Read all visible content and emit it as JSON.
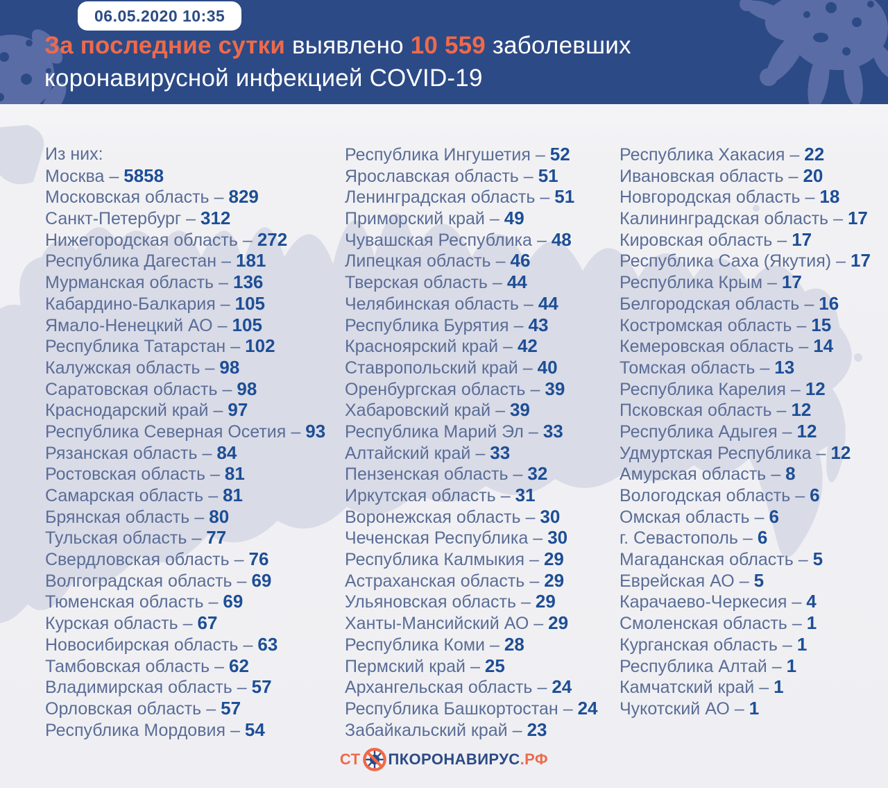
{
  "header": {
    "timestamp": "06.05.2020 10:35",
    "title": {
      "highlight1": "За последние сутки",
      "plain1": " выявлено ",
      "highlight2": "10 559",
      "plain2": " заболевших",
      "line2": "коронавирусной инфекцией COVID-19"
    }
  },
  "list_separator": "–",
  "chart_data": {
    "type": "table",
    "title": "За последние сутки выявлено 10 559 заболевших коронавирусной инфекцией COVID-19",
    "date_label": "06.05.2020 10:35",
    "total_new_cases": 10559,
    "intro": "Из них:",
    "columns": [
      [
        {
          "region": "Москва",
          "cases": 5858
        },
        {
          "region": "Московская область",
          "cases": 829
        },
        {
          "region": "Санкт-Петербург",
          "cases": 312
        },
        {
          "region": "Нижегородская область",
          "cases": 272
        },
        {
          "region": "Республика Дагестан",
          "cases": 181
        },
        {
          "region": "Мурманская область",
          "cases": 136
        },
        {
          "region": "Кабардино-Балкария",
          "cases": 105
        },
        {
          "region": "Ямало-Ненецкий АО",
          "cases": 105
        },
        {
          "region": "Республика Татарстан",
          "cases": 102
        },
        {
          "region": "Калужская область",
          "cases": 98
        },
        {
          "region": "Саратовская область",
          "cases": 98
        },
        {
          "region": "Краснодарский край",
          "cases": 97
        },
        {
          "region": "Республика Северная Осетия",
          "cases": 93
        },
        {
          "region": "Рязанская область",
          "cases": 84
        },
        {
          "region": "Ростовская область",
          "cases": 81
        },
        {
          "region": "Самарская область",
          "cases": 81
        },
        {
          "region": "Брянская область",
          "cases": 80
        },
        {
          "region": "Тульская область",
          "cases": 77
        },
        {
          "region": "Свердловская область",
          "cases": 76
        },
        {
          "region": "Волгоградская область",
          "cases": 69
        },
        {
          "region": "Тюменская область",
          "cases": 69
        },
        {
          "region": "Курская область",
          "cases": 67
        },
        {
          "region": "Новосибирская область",
          "cases": 63
        },
        {
          "region": "Тамбовская область",
          "cases": 62
        },
        {
          "region": "Владимирская область",
          "cases": 57
        },
        {
          "region": "Орловская область",
          "cases": 57
        },
        {
          "region": "Республика Мордовия",
          "cases": 54
        }
      ],
      [
        {
          "region": "Республика Ингушетия",
          "cases": 52
        },
        {
          "region": "Ярославская область",
          "cases": 51
        },
        {
          "region": "Ленинградская область",
          "cases": 51
        },
        {
          "region": "Приморский край",
          "cases": 49
        },
        {
          "region": "Чувашская Республика",
          "cases": 48
        },
        {
          "region": "Липецкая область",
          "cases": 46
        },
        {
          "region": "Тверская область",
          "cases": 44
        },
        {
          "region": "Челябинская область",
          "cases": 44
        },
        {
          "region": "Республика Бурятия",
          "cases": 43
        },
        {
          "region": "Красноярский край",
          "cases": 42
        },
        {
          "region": "Ставропольский край",
          "cases": 40
        },
        {
          "region": "Оренбургская область",
          "cases": 39
        },
        {
          "region": "Хабаровский край",
          "cases": 39
        },
        {
          "region": "Республика Марий Эл",
          "cases": 33
        },
        {
          "region": "Алтайский край",
          "cases": 33
        },
        {
          "region": "Пензенская область",
          "cases": 32
        },
        {
          "region": "Иркутская область",
          "cases": 31
        },
        {
          "region": "Воронежская область",
          "cases": 30
        },
        {
          "region": "Чеченская Республика",
          "cases": 30
        },
        {
          "region": "Республика Калмыкия",
          "cases": 29
        },
        {
          "region": "Астраханская область",
          "cases": 29
        },
        {
          "region": "Ульяновская область",
          "cases": 29
        },
        {
          "region": "Ханты-Мансийский АО",
          "cases": 29
        },
        {
          "region": "Республика Коми",
          "cases": 28
        },
        {
          "region": "Пермский край",
          "cases": 25
        },
        {
          "region": "Архангельская область",
          "cases": 24
        },
        {
          "region": "Республика Башкортостан",
          "cases": 24
        },
        {
          "region": "Забайкальский край",
          "cases": 23
        }
      ],
      [
        {
          "region": "Республика Хакасия",
          "cases": 22
        },
        {
          "region": "Ивановская область",
          "cases": 20
        },
        {
          "region": "Новгородская область",
          "cases": 18
        },
        {
          "region": "Калининградская область",
          "cases": 17
        },
        {
          "region": "Кировская область",
          "cases": 17
        },
        {
          "region": "Республика Саха (Якутия)",
          "cases": 17
        },
        {
          "region": "Республика Крым",
          "cases": 17
        },
        {
          "region": "Белгородская область",
          "cases": 16
        },
        {
          "region": "Костромская область",
          "cases": 15
        },
        {
          "region": "Кемеровская область",
          "cases": 14
        },
        {
          "region": "Томская область",
          "cases": 13
        },
        {
          "region": "Республика Карелия",
          "cases": 12
        },
        {
          "region": "Псковская область",
          "cases": 12
        },
        {
          "region": "Республика Адыгея",
          "cases": 12
        },
        {
          "region": "Удмуртская Республика",
          "cases": 12
        },
        {
          "region": "Амурская область",
          "cases": 8
        },
        {
          "region": "Вологодская область",
          "cases": 6
        },
        {
          "region": "Омская область",
          "cases": 6
        },
        {
          "region": "г. Севастополь",
          "cases": 6
        },
        {
          "region": "Магаданская область",
          "cases": 5
        },
        {
          "region": "Еврейская АО",
          "cases": 5
        },
        {
          "region": "Карачаево-Черкесия",
          "cases": 4
        },
        {
          "region": "Смоленская область",
          "cases": 1
        },
        {
          "region": "Курганская область",
          "cases": 1
        },
        {
          "region": "Республика Алтай",
          "cases": 1
        },
        {
          "region": "Камчатский край",
          "cases": 1
        },
        {
          "region": "Чукотский АО",
          "cases": 1
        }
      ]
    ]
  },
  "footer": {
    "logo_prefix": "СТ",
    "logo_middle": "ПКОРОНАВИРУС",
    "logo_suffix": ".РФ"
  },
  "colors": {
    "header_bg": "#2c4a86",
    "accent_orange": "#ee6a4a",
    "body_bg": "#efeff3",
    "map_fill": "#d9dbe7",
    "region_name": "#5a6d96",
    "region_value": "#1d4e95",
    "blob_decoration": "#5a6ca5"
  }
}
